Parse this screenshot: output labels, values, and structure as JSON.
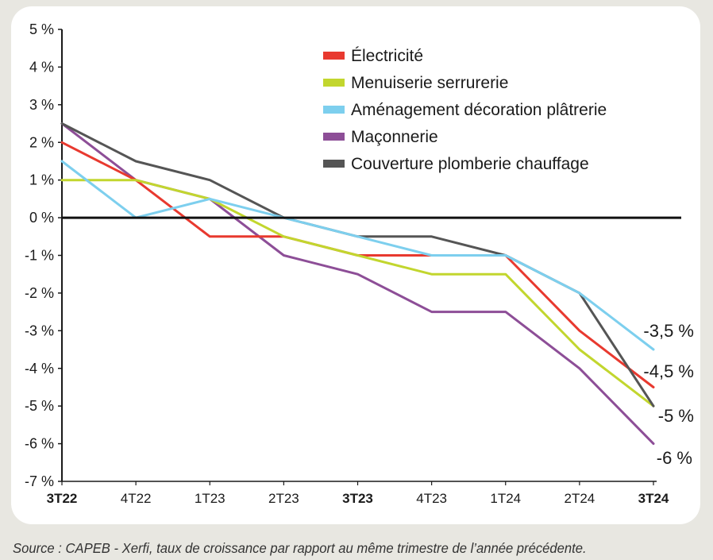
{
  "chart_data": {
    "type": "line",
    "categories": [
      "3T22",
      "4T22",
      "1T23",
      "2T23",
      "3T23",
      "4T23",
      "1T24",
      "2T24",
      "3T24"
    ],
    "bold_categories": [
      "3T22",
      "3T23",
      "3T24"
    ],
    "ylim": [
      -7,
      5
    ],
    "yticks": [
      5,
      4,
      3,
      2,
      1,
      0,
      -1,
      -2,
      -3,
      -4,
      -5,
      -6,
      -7
    ],
    "ytick_labels": [
      "5 %",
      "4 %",
      "3 %",
      "2 %",
      "1 %",
      "0 %",
      "-1 %",
      "-2 %",
      "-3 %",
      "-4 %",
      "-5 %",
      "-6 %",
      "-7 %"
    ],
    "legend_position": "top-right",
    "grid": false,
    "series": [
      {
        "name": "Électricité",
        "color": "#e8392f",
        "values": [
          2,
          1,
          -0.5,
          -0.5,
          -1,
          -1,
          -1,
          -3,
          -4.5
        ]
      },
      {
        "name": "Menuiserie serrurerie",
        "color": "#c2d62e",
        "values": [
          1,
          1,
          0.5,
          -0.5,
          -1,
          -1.5,
          -1.5,
          -3.5,
          -5
        ]
      },
      {
        "name": "Aménagement décoration plâtrerie",
        "color": "#7dcfee",
        "values": [
          1.5,
          0,
          0.5,
          0,
          -0.5,
          -1,
          -1,
          -2,
          -3.5
        ]
      },
      {
        "name": "Maçonnerie",
        "color": "#8d4e97",
        "values": [
          2.5,
          1,
          0.5,
          -1,
          -1.5,
          -2.5,
          -2.5,
          -4,
          -6
        ]
      },
      {
        "name": "Couverture plomberie chauffage",
        "color": "#555555",
        "values": [
          2.5,
          1.5,
          1,
          0,
          -0.5,
          -0.5,
          -1,
          -2,
          -5
        ]
      }
    ],
    "end_labels": [
      "-3,5 %",
      "-4,5 %",
      "-5 %",
      "-6 %"
    ]
  },
  "source": "Source : CAPEB - Xerfi, taux de croissance par rapport au même trimestre de l’année précédente."
}
